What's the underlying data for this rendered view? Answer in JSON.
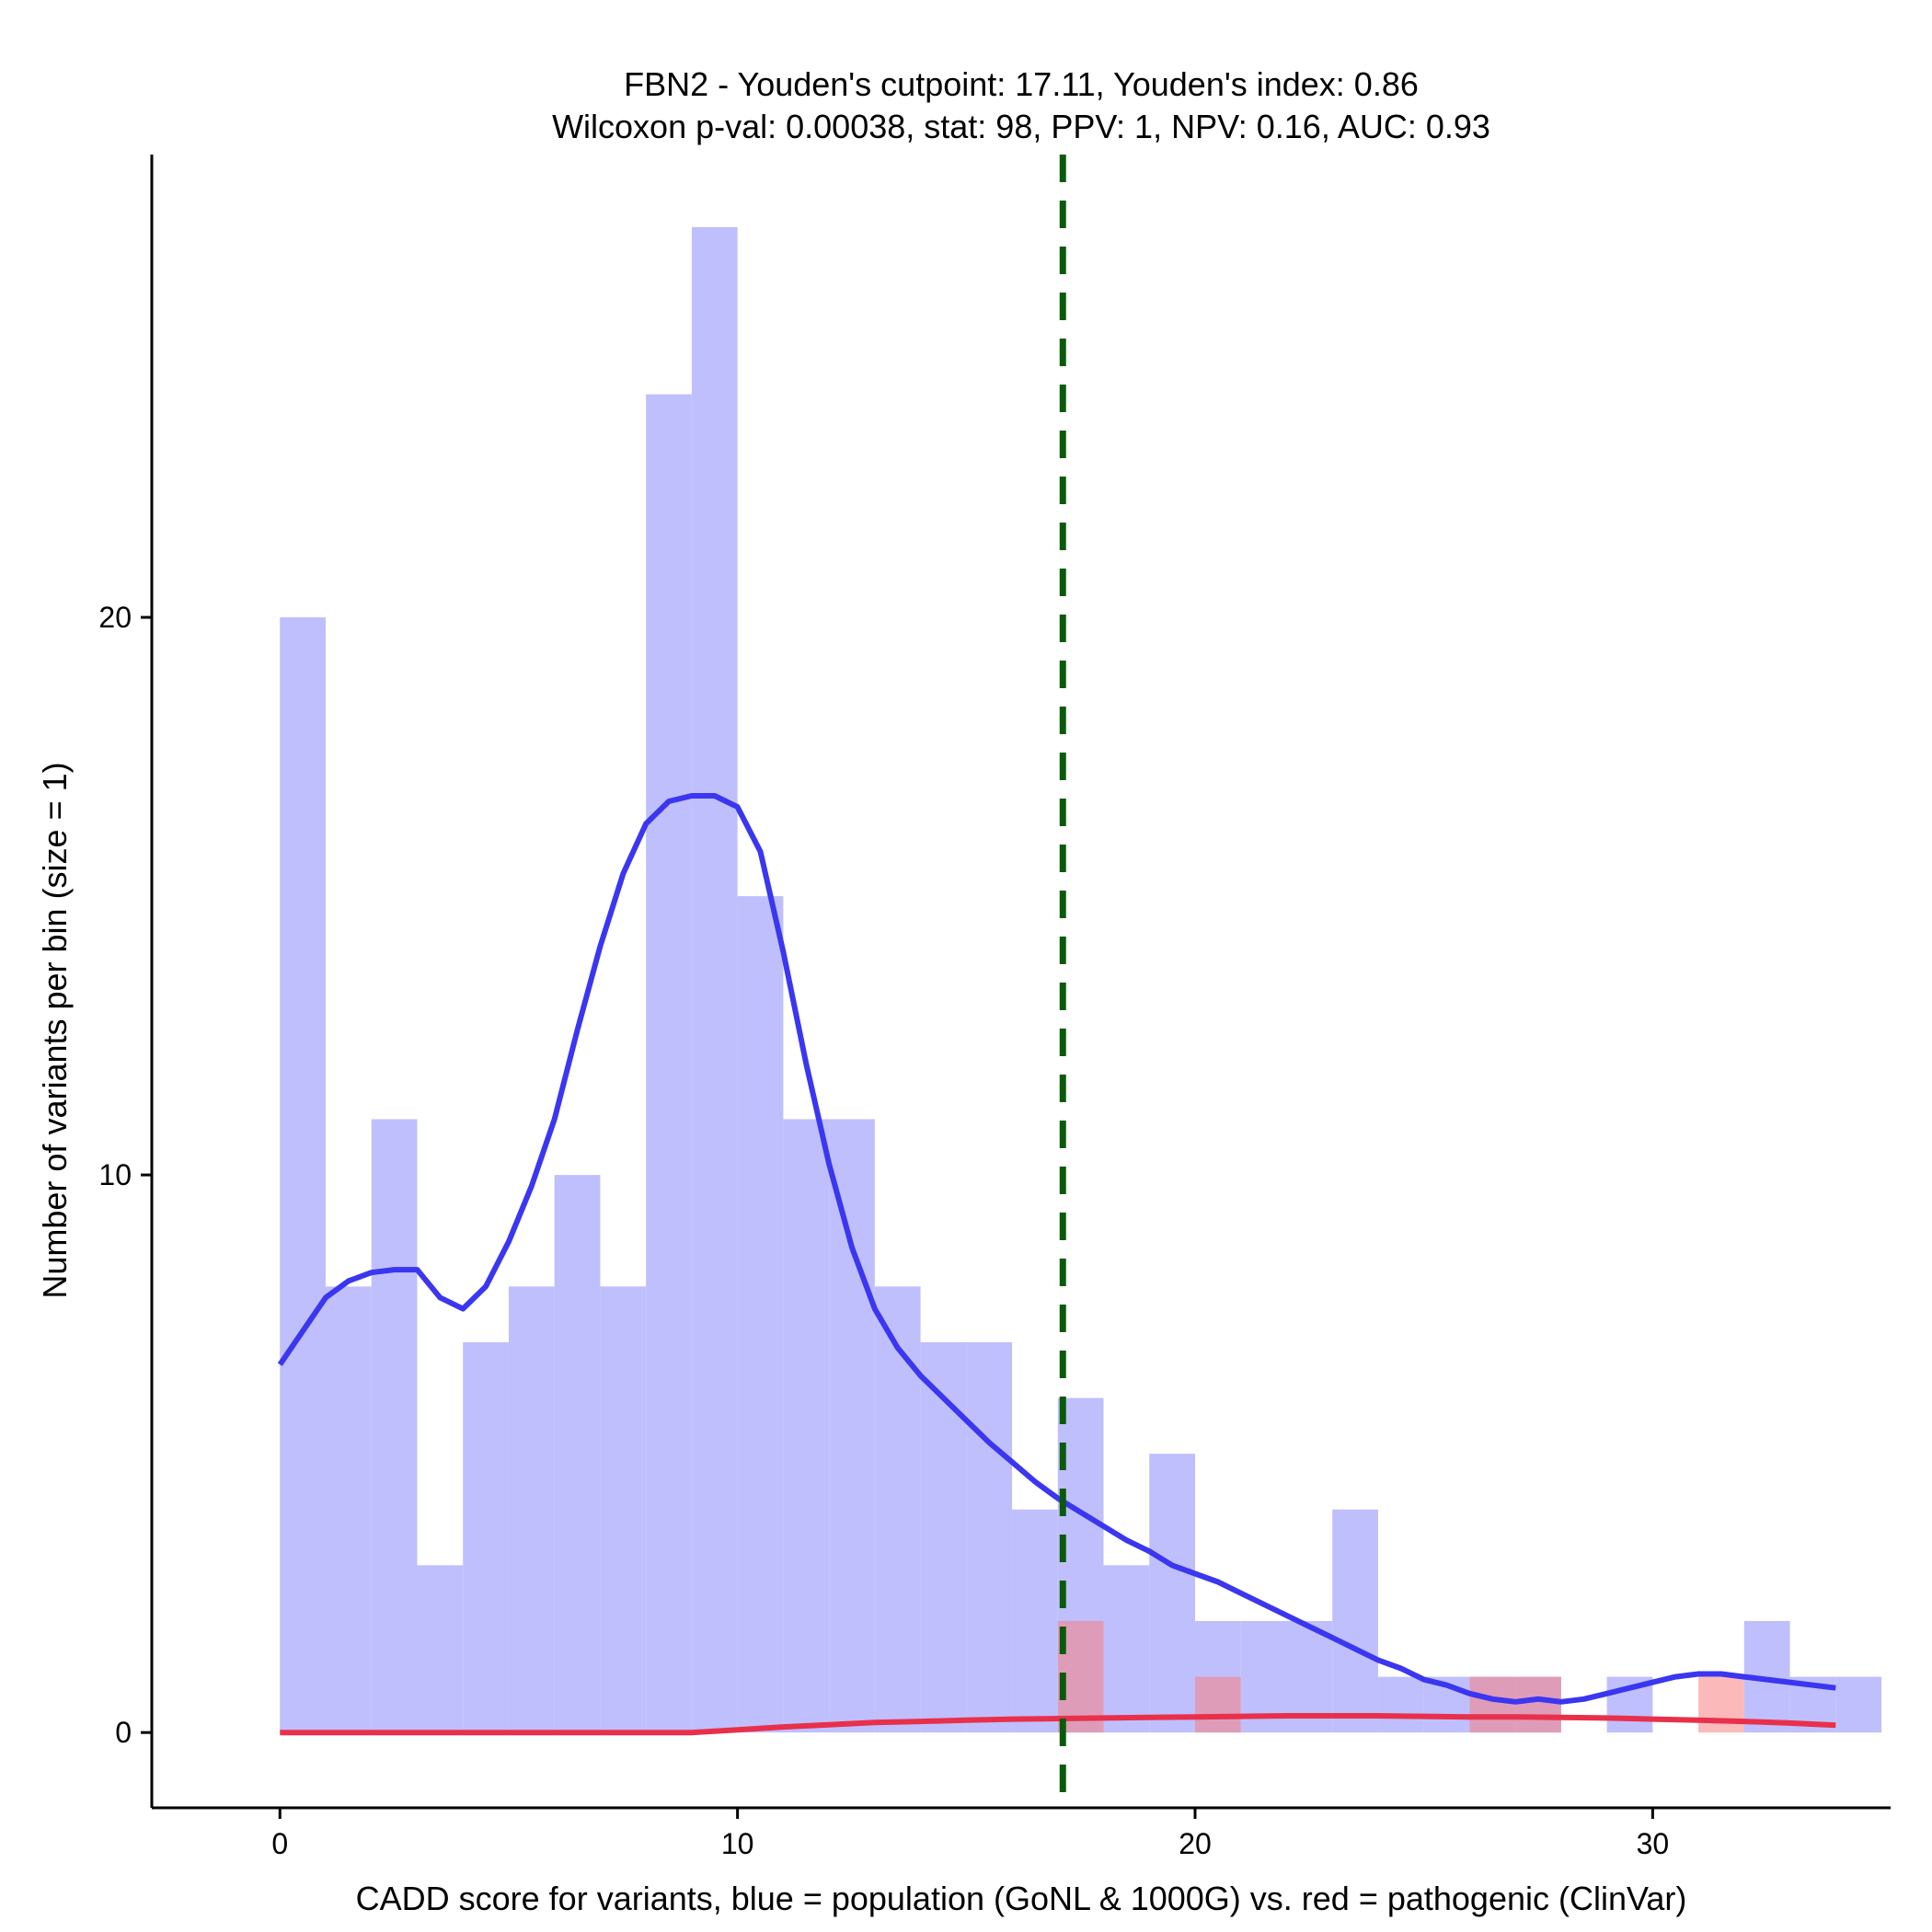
{
  "chart_data": {
    "type": "bar",
    "title": "FBN2 - Youden's cutpoint: 17.11, Youden's index: 0.86",
    "subtitle": "Wilcoxon p-val: 0.00038, stat: 98, PPV: 1, NPV: 0.16, AUC: 0.93",
    "xlabel": "CADD score for variants, blue = population (GoNL & 1000G) vs. red = pathogenic (ClinVar)",
    "ylabel": "Number of variants per bin (size = 1)",
    "xlim": [
      -2.8,
      35.2
    ],
    "ylim": [
      -1.35,
      28.3
    ],
    "x_ticks": [
      0,
      10,
      20,
      30
    ],
    "x_tick_labels": [
      "0",
      "10",
      "20",
      "30"
    ],
    "y_ticks": [
      0,
      10,
      20
    ],
    "y_tick_labels": [
      "0",
      "10",
      "20"
    ],
    "bin_size": 1,
    "population_color": "#bfbffd",
    "pathogenic_color": "#f88080",
    "population_curve_color": "#3b36f0",
    "pathogenic_curve_color": "#e8304a",
    "cutpoint_color": "#0b5a0b",
    "cutpoint": 17.11,
    "population_bins": {
      "bin_start": [
        0,
        1,
        2,
        3,
        4,
        5,
        6,
        7,
        8,
        9,
        10,
        11,
        12,
        13,
        14,
        15,
        16,
        17,
        18,
        19,
        20,
        21,
        22,
        23,
        24,
        25,
        26,
        27,
        28,
        29,
        30,
        31,
        32,
        33,
        34
      ],
      "counts": [
        20,
        8,
        11,
        3,
        7,
        8,
        10,
        8,
        24,
        27,
        15,
        11,
        11,
        8,
        7,
        7,
        4,
        6,
        3,
        5,
        2,
        2,
        2,
        4,
        1,
        1,
        1,
        1,
        0,
        1,
        0,
        0,
        2,
        1,
        1
      ]
    },
    "pathogenic_bins": {
      "bin_start": [
        17,
        20,
        26,
        27,
        31
      ],
      "counts": [
        2,
        1,
        1,
        1,
        1
      ]
    },
    "population_density_curve": {
      "x": [
        0,
        0.5,
        1,
        1.5,
        2,
        2.5,
        3,
        3.5,
        4,
        4.5,
        5,
        5.5,
        6,
        6.5,
        7,
        7.5,
        8,
        8.5,
        9,
        9.5,
        10,
        10.5,
        11,
        11.5,
        12,
        12.5,
        13,
        13.5,
        14,
        14.5,
        15,
        15.5,
        16,
        16.5,
        17,
        17.5,
        18,
        18.5,
        19,
        19.5,
        20,
        20.5,
        21,
        21.5,
        22,
        22.5,
        23,
        23.5,
        24,
        24.5,
        25,
        25.5,
        26,
        26.5,
        27,
        27.5,
        28,
        28.5,
        29,
        29.5,
        30,
        30.5,
        31,
        31.5,
        32,
        32.5,
        33,
        33.5,
        34
      ],
      "y": [
        6.6,
        7.2,
        7.8,
        8.1,
        8.25,
        8.3,
        8.3,
        7.8,
        7.6,
        8.0,
        8.8,
        9.8,
        11.0,
        12.6,
        14.1,
        15.4,
        16.3,
        16.7,
        16.8,
        16.8,
        16.6,
        15.8,
        14.0,
        12.0,
        10.2,
        8.7,
        7.6,
        6.9,
        6.4,
        6.0,
        5.6,
        5.2,
        4.85,
        4.5,
        4.2,
        3.95,
        3.7,
        3.45,
        3.25,
        3.0,
        2.85,
        2.7,
        2.5,
        2.3,
        2.1,
        1.9,
        1.7,
        1.5,
        1.3,
        1.15,
        0.95,
        0.85,
        0.7,
        0.6,
        0.55,
        0.6,
        0.55,
        0.6,
        0.7,
        0.8,
        0.9,
        1.0,
        1.05,
        1.05,
        1.0,
        0.95,
        0.9,
        0.85,
        0.8
      ]
    },
    "pathogenic_density_curve": {
      "x": [
        0,
        2,
        4,
        6,
        8,
        9,
        10,
        11,
        12,
        13,
        14,
        15,
        16,
        17,
        18,
        19,
        20,
        21,
        22,
        23,
        24,
        25,
        26,
        27,
        28,
        29,
        30,
        31,
        32,
        33,
        34
      ],
      "y": [
        0,
        0,
        0,
        0,
        0,
        0,
        0.05,
        0.1,
        0.14,
        0.18,
        0.2,
        0.22,
        0.24,
        0.25,
        0.26,
        0.27,
        0.28,
        0.29,
        0.3,
        0.3,
        0.3,
        0.29,
        0.28,
        0.28,
        0.27,
        0.26,
        0.24,
        0.22,
        0.2,
        0.17,
        0.13
      ]
    }
  }
}
